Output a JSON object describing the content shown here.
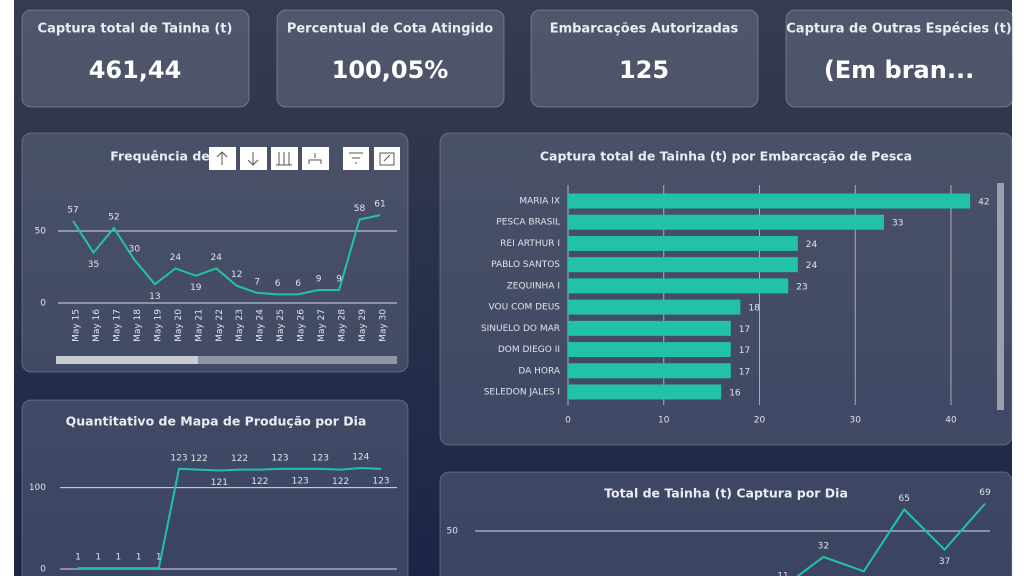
{
  "cards": [
    {
      "title": "Captura total de Tainha (t)",
      "value": "461,44"
    },
    {
      "title": "Percentual de Cota Atingido",
      "value": "100,05%"
    },
    {
      "title": "Embarcações Autorizadas",
      "value": "125"
    },
    {
      "title": "Captura de Outras Espécies (t)",
      "value": "(Em bran..."
    }
  ],
  "chart_data": [
    {
      "type": "line",
      "title": "Frequência de",
      "color": "#22c2aa",
      "categories": [
        "May 15",
        "May 16",
        "May 17",
        "May 18",
        "May 19",
        "May 20",
        "May 21",
        "May 22",
        "May 23",
        "May 24",
        "May 25",
        "May 26",
        "May 27",
        "May 28",
        "May 29",
        "May 30"
      ],
      "values": [
        57,
        35,
        52,
        30,
        13,
        24,
        19,
        24,
        12,
        7,
        6,
        6,
        9,
        9,
        58,
        61
      ],
      "ylim": [
        0,
        75
      ],
      "yticks": [
        0,
        50
      ],
      "grid": true
    },
    {
      "type": "bar",
      "orientation": "horizontal",
      "title": "Captura total de Tainha (t) por Embarcação de Pesca",
      "color": "#22c2aa",
      "categories": [
        "MARIA IX",
        "PESCA BRASIL",
        "REI ARTHUR I",
        "PABLO SANTOS",
        "ZEQUINHA I",
        "VOU COM DEUS",
        "SINUELO DO MAR",
        "DOM DIEGO II",
        "DA HORA",
        "SELEDON JALES I"
      ],
      "values": [
        42,
        33,
        24,
        24,
        23,
        18,
        17,
        17,
        17,
        16
      ],
      "xlim": [
        0,
        44
      ],
      "xticks": [
        0,
        10,
        20,
        30,
        40
      ],
      "grid": true
    },
    {
      "type": "line",
      "title": "Quantitativo de Mapa de Produção por Dia",
      "color": "#22c2aa",
      "values": [
        1,
        1,
        1,
        1,
        1,
        123,
        122,
        121,
        122,
        122,
        123,
        123,
        123,
        122,
        124,
        123
      ],
      "ylim": [
        0,
        140
      ],
      "yticks": [
        0,
        100
      ],
      "grid": true
    },
    {
      "type": "line",
      "title": "Total de Tainha (t) Captura por Dia",
      "color": "#22c2aa",
      "values": [
        11,
        32,
        22,
        65,
        37,
        69
      ],
      "ylim": [
        0,
        75
      ],
      "yticks": [
        50
      ],
      "grid": true
    }
  ]
}
